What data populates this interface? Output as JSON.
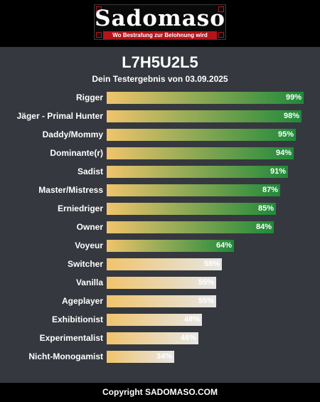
{
  "logo": {
    "name": "Sadomaso",
    "tagline": "Wo Bestrafung zur Belohnung wird"
  },
  "chart_data": {
    "type": "bar",
    "title": "L7H5U2L5",
    "subtitle": "Dein Testergebnis von 03.09.2025",
    "categories": [
      "Rigger",
      "Jäger - Primal Hunter",
      "Daddy/Mommy",
      "Dominante(r)",
      "Sadist",
      "Master/Mistress",
      "Erniedriger",
      "Owner",
      "Voyeur",
      "Switcher",
      "Vanilla",
      "Ageplayer",
      "Exhibitionist",
      "Experimentalist",
      "Nicht-Monogamist"
    ],
    "values": [
      99,
      98,
      95,
      94,
      91,
      87,
      85,
      84,
      64,
      58,
      55,
      55,
      48,
      46,
      34
    ],
    "value_labels": [
      "99%",
      "98%",
      "95%",
      "94%",
      "91%",
      "87%",
      "85%",
      "84%",
      "64%",
      "58%",
      "55%",
      "55%",
      "48%",
      "46%",
      "34%"
    ],
    "ylim": [
      0,
      100
    ],
    "colors": {
      "start": "#f0c46c",
      "high": "#1f8a3a",
      "low": "#e6e6e6",
      "threshold": 60
    }
  },
  "footer": {
    "text": "Copyright SADOMASO.COM"
  }
}
